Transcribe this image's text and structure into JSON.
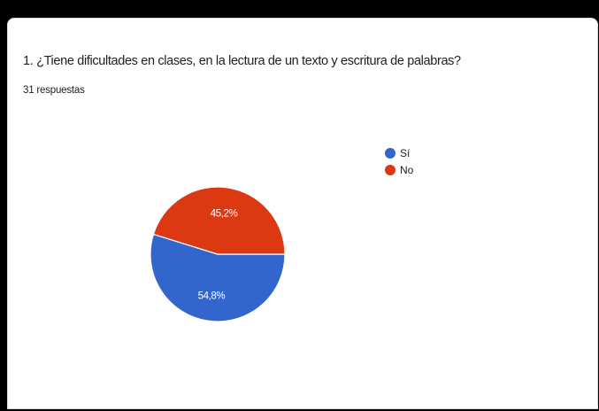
{
  "question": {
    "title": "1. ¿Tiene dificultades en clases, en la lectura de un texto y escritura de palabras?",
    "responses": "31 respuestas"
  },
  "chart_data": {
    "type": "pie",
    "categories": [
      "Sí",
      "No"
    ],
    "values": [
      54.8,
      45.2
    ],
    "labels": [
      "54,8%",
      "45,2%"
    ],
    "colors": [
      "#3366cc",
      "#dc3912"
    ],
    "legend_position": "right"
  }
}
